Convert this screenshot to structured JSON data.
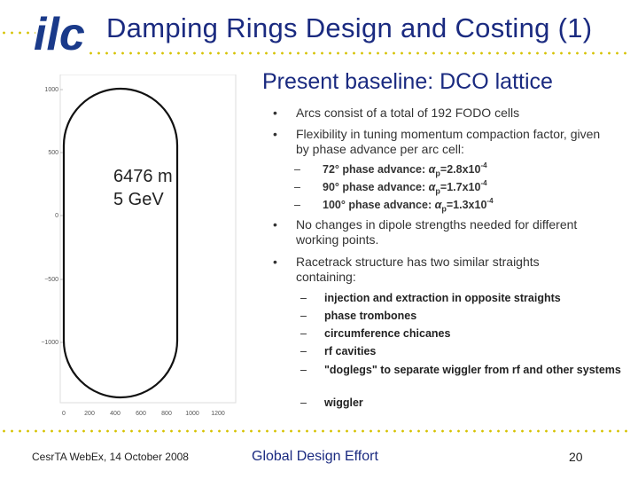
{
  "header": {
    "title": "Damping Rings Design and Costing (1)",
    "logo_text": "ilc"
  },
  "subtitle": "Present baseline: DCO lattice",
  "ring_plot": {
    "y_ticks": [
      "1000",
      "500",
      "0",
      "−500",
      "−1000"
    ],
    "x_ticks": [
      "0",
      "200",
      "400",
      "600",
      "800",
      "1000",
      "1200"
    ],
    "circumference": "6476 m",
    "energy": "5 GeV"
  },
  "bullets": {
    "b1": "Arcs consist of a total of 192 FODO cells",
    "b2": "Flexibility in tuning momentum compaction factor, given by phase advance per arc cell:",
    "phase_items": [
      {
        "prefix": "72° phase advance: ",
        "value": "=2.8x10",
        "exp": "-4"
      },
      {
        "prefix": "90° phase advance: ",
        "value": "=1.7x10",
        "exp": "-4"
      },
      {
        "prefix": "100° phase advance: ",
        "value": "=1.3x10",
        "exp": "-4"
      }
    ],
    "alpha_symbol": "α",
    "alpha_sub": "p",
    "b3": "No changes in dipole strengths needed for different working points.",
    "b4": "Racetrack structure has two similar straights containing:",
    "straights": [
      "injection and extraction in opposite straights",
      "phase trombones",
      "circumference chicanes",
      "rf cavities",
      "\"doglegs\" to separate wiggler from rf and other systems"
    ],
    "last": "wiggler",
    "bullet_char": "•",
    "dash_char": "–"
  },
  "footer": {
    "left": "CesrTA WebEx, 14 October 2008",
    "center": "Global Design Effort",
    "page": "20"
  },
  "colors": {
    "title_blue": "#1a2a80",
    "dot_yellow": "#d6c200",
    "logo_blue": "#1a3a8a"
  }
}
